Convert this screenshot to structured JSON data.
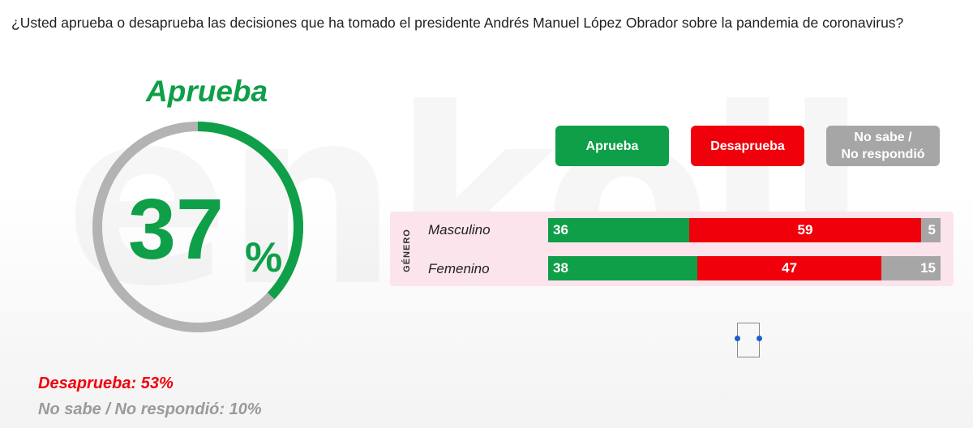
{
  "question": "¿Usted aprueba o desaprueba las decisiones que ha tomado el presidente Andrés Manuel López Obrador sobre la pandemia de coronavirus?",
  "watermark": "enkoll",
  "donut": {
    "title": "Aprueba",
    "value_text": "37",
    "percent_sign": "%",
    "value": 37
  },
  "notes": {
    "desaprueba": "Desaprueba: 53%",
    "no_sabe": "No sabe / No respondió: 10%"
  },
  "legend": {
    "aprueba": "Aprueba",
    "desaprueba": "Desaprueba",
    "no_sabe_line1": "No sabe /",
    "no_sabe_line2": "No respondió"
  },
  "breakdown": {
    "group_label": "GÉNERO",
    "rows": [
      {
        "label": "Masculino",
        "aprueba": "36",
        "desaprueba": "59",
        "no_sabe": "5"
      },
      {
        "label": "Femenino",
        "aprueba": "38",
        "desaprueba": "47",
        "no_sabe": "15"
      }
    ]
  },
  "colors": {
    "aprueba": "#0f9f48",
    "desaprueba": "#f0000a",
    "no_sabe": "#a6a6a6",
    "panel": "#fce4ec"
  },
  "chart_data": [
    {
      "type": "pie",
      "title": "Aprueba",
      "categories": [
        "Aprueba",
        "Desaprueba",
        "No sabe / No respondió"
      ],
      "values": [
        37,
        53,
        10
      ],
      "highlight": "Aprueba"
    },
    {
      "type": "bar",
      "orientation": "horizontal-stacked",
      "categories": [
        "Masculino",
        "Femenino"
      ],
      "series": [
        {
          "name": "Aprueba",
          "values": [
            36,
            38
          ]
        },
        {
          "name": "Desaprueba",
          "values": [
            59,
            47
          ]
        },
        {
          "name": "No sabe / No respondió",
          "values": [
            5,
            15
          ]
        }
      ],
      "group_label": "GÉNERO",
      "xlim": [
        0,
        100
      ]
    }
  ]
}
